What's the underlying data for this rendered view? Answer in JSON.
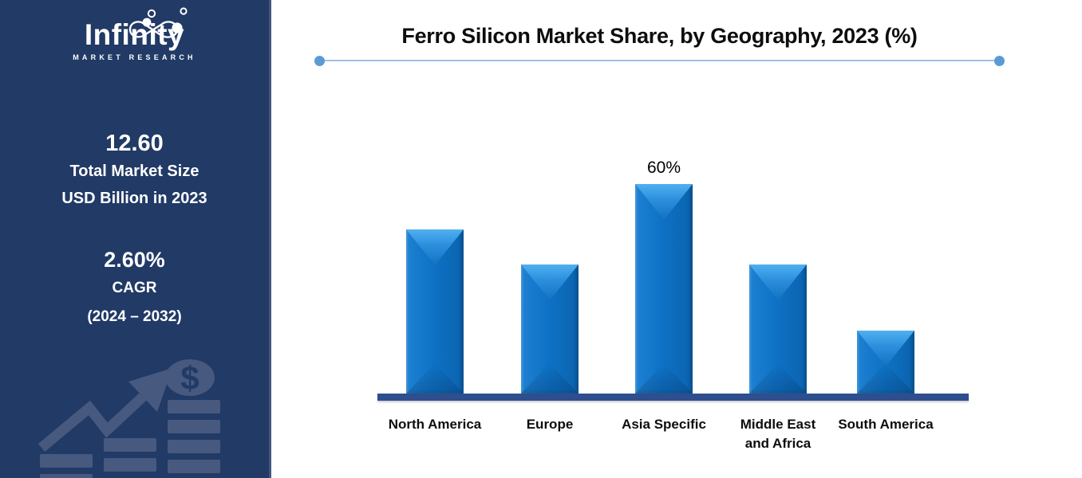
{
  "sidebar": {
    "logo": {
      "name": "Infinity",
      "subtitle": "MARKET RESEARCH"
    },
    "market_size": {
      "value": "12.60",
      "label_line1": "Total Market Size",
      "label_line2": "USD Billion in 2023"
    },
    "cagr": {
      "value": "2.60%",
      "label": "CAGR",
      "period": "(2024 – 2032)"
    },
    "watermark_icon": "growth-bars-arrow-dollar",
    "colors": {
      "background": "#213A66",
      "text": "#FFFFFF",
      "watermark": "#47597E"
    }
  },
  "chart_data": {
    "type": "bar",
    "title": "Ferro Silicon Market Share, by Geography, 2023 (%)",
    "categories": [
      "North America",
      "Europe",
      "Asia Specific",
      "Middle East and Africa",
      "South America"
    ],
    "tick_labels": [
      "North America",
      "Europe",
      "Asia Specific",
      "Middle East\nand Africa",
      "South America"
    ],
    "values": [
      47,
      37,
      60,
      37,
      18
    ],
    "value_labels": [
      "",
      "",
      "60%",
      "",
      ""
    ],
    "unit": "%",
    "xlabel": "",
    "ylabel": "",
    "ylim": [
      0,
      65
    ],
    "grid": false,
    "legend": false,
    "bar_color": "#0E72C6",
    "bar_bevel_color": "#4FB0EF",
    "axis_line_color": "#2E4E8E"
  },
  "decor": {
    "title_underline_color": "#9DC3E6",
    "endpoint_dot_color": "#5B9BD5"
  }
}
